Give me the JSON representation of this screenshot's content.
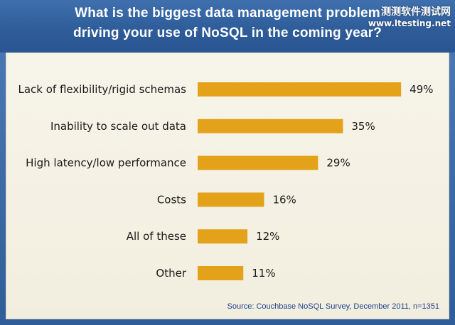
{
  "header": {
    "title_line1": "What is the biggest data management problem",
    "title_line2": "driving your use of NoSQL in the coming year?"
  },
  "watermark": {
    "line1": "测测软件测试网",
    "line2": "www.ltesting.net"
  },
  "source": "Source: Couchbase NoSQL Survey, December 2011, n=1351",
  "colors": {
    "bar": "#e3a21a",
    "header": "#2e5d9a",
    "background": "#f4f1e4"
  },
  "chart_data": {
    "type": "bar",
    "orientation": "horizontal",
    "categories": [
      "Lack of flexibility/rigid schemas",
      "Inability to scale out data",
      "High latency/low performance",
      "Costs",
      "All of these",
      "Other"
    ],
    "values": [
      49,
      35,
      29,
      16,
      12,
      11
    ],
    "value_labels": [
      "49%",
      "35%",
      "29%",
      "16%",
      "12%",
      "11%"
    ],
    "unit": "%",
    "xlim": [
      0,
      50
    ],
    "grid": false,
    "legend": false
  }
}
